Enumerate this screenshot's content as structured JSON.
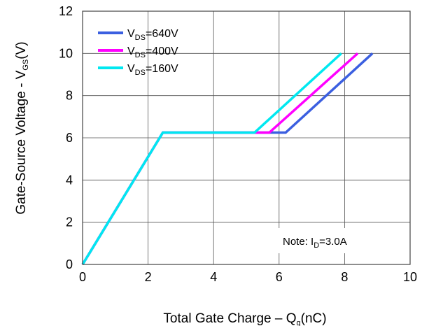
{
  "chart_data": {
    "type": "line",
    "xlabel": {
      "main": "Total Gate Charge  –  Q",
      "sub": "g",
      "tail": "(nC)"
    },
    "ylabel": {
      "main": "Gate-Source Voltage  -  V",
      "sub": "GS",
      "tail": "(V)"
    },
    "xlim": [
      0,
      10
    ],
    "ylim": [
      0,
      12
    ],
    "xticks": [
      "0",
      "2",
      "4",
      "6",
      "8",
      "10"
    ],
    "yticks": [
      "0",
      "2",
      "4",
      "6",
      "8",
      "10",
      "12"
    ],
    "grid": true,
    "legend_position": "top-left",
    "series": [
      {
        "name": "640V",
        "legend_prefix": "V",
        "legend_sub": "DS",
        "legend_eq": "=",
        "color": "#3b5fe0",
        "points": [
          [
            0,
            0
          ],
          [
            2.45,
            6.25
          ],
          [
            6.2,
            6.25
          ],
          [
            8.85,
            10
          ]
        ]
      },
      {
        "name": "400V",
        "legend_prefix": "V",
        "legend_sub": "DS",
        "legend_eq": "=",
        "color": "#ff00ff",
        "points": [
          [
            0,
            0
          ],
          [
            2.45,
            6.25
          ],
          [
            5.7,
            6.25
          ],
          [
            8.4,
            10
          ]
        ]
      },
      {
        "name": "160V",
        "legend_prefix": "V",
        "legend_sub": "DS",
        "legend_eq": "=",
        "color": "#00e8f0",
        "points": [
          [
            0,
            0
          ],
          [
            2.45,
            6.25
          ],
          [
            5.25,
            6.25
          ],
          [
            7.9,
            10
          ]
        ]
      }
    ],
    "annotation": {
      "prefix": "Note: I",
      "sub": "D",
      "tail": "=3.0A"
    }
  }
}
